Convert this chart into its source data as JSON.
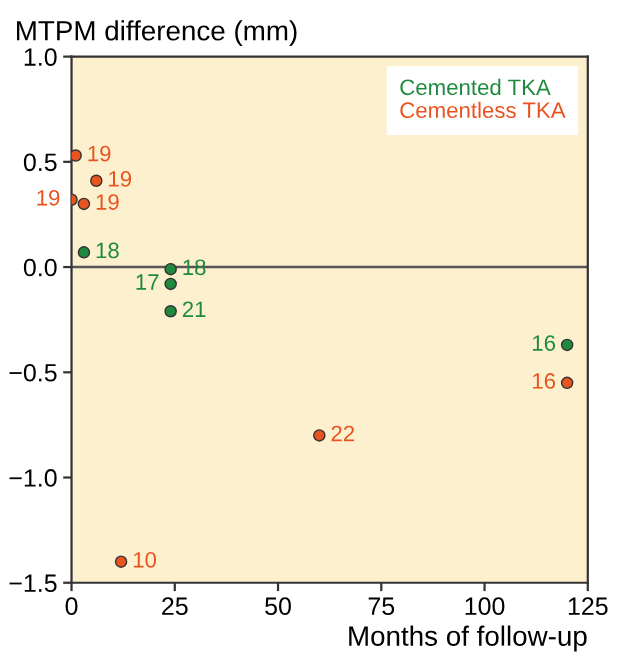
{
  "chart_data": {
    "type": "scatter",
    "xlabel": "Months of follow-up",
    "ylabel": "MTPM difference (mm)",
    "series": [
      {
        "name": "Cemented TKA",
        "color": "#1f8a3f",
        "x": [
          3,
          24,
          24,
          24,
          120
        ],
        "values": [
          0.07,
          -0.01,
          -0.08,
          -0.21,
          -0.37
        ]
      },
      {
        "name": "Cementless TKA",
        "color": "#e8531f",
        "x": [
          1,
          6,
          3,
          0,
          12,
          60,
          120
        ],
        "values": [
          0.53,
          0.41,
          0.3,
          0.32,
          -1.4,
          -0.8,
          -0.55
        ]
      }
    ],
    "annotations": [
      {
        "text": "18",
        "x": 3,
        "y": 0.07
      },
      {
        "text": "18",
        "x": 24,
        "y": -0.01
      },
      {
        "text": "17",
        "x": 24,
        "y": -0.08
      },
      {
        "text": "21",
        "x": 24,
        "y": -0.21
      },
      {
        "text": "16",
        "x": 120,
        "y": -0.37
      },
      {
        "text": "19",
        "x": 1,
        "y": 0.53
      },
      {
        "text": "19",
        "x": 6,
        "y": 0.41
      },
      {
        "text": "19",
        "x": 3,
        "y": 0.3
      },
      {
        "text": "19",
        "x": 0,
        "y": 0.32
      },
      {
        "text": "10",
        "x": 12,
        "y": -1.4
      },
      {
        "text": "22",
        "x": 60,
        "y": -0.8
      },
      {
        "text": "16",
        "x": 120,
        "y": -0.55
      }
    ],
    "xlim": [
      0,
      125
    ],
    "xticks": [
      0,
      25,
      50,
      75,
      100,
      125
    ],
    "ylim": [
      -1.5,
      1.0
    ],
    "yticks": [
      {
        "value": -1.5,
        "label": "−1.5"
      },
      {
        "value": -1.0,
        "label": "−1.0"
      },
      {
        "value": -0.5,
        "label": "−0.5"
      },
      {
        "value": 0.0,
        "label": "0.0"
      },
      {
        "value": 0.5,
        "label": "0.5"
      },
      {
        "value": 1.0,
        "label": "1.0"
      }
    ],
    "ref_lines": [
      {
        "axis": "y",
        "value": 0,
        "color": "#555555"
      }
    ],
    "marker": "circle",
    "legend": "top right",
    "grid": false
  }
}
